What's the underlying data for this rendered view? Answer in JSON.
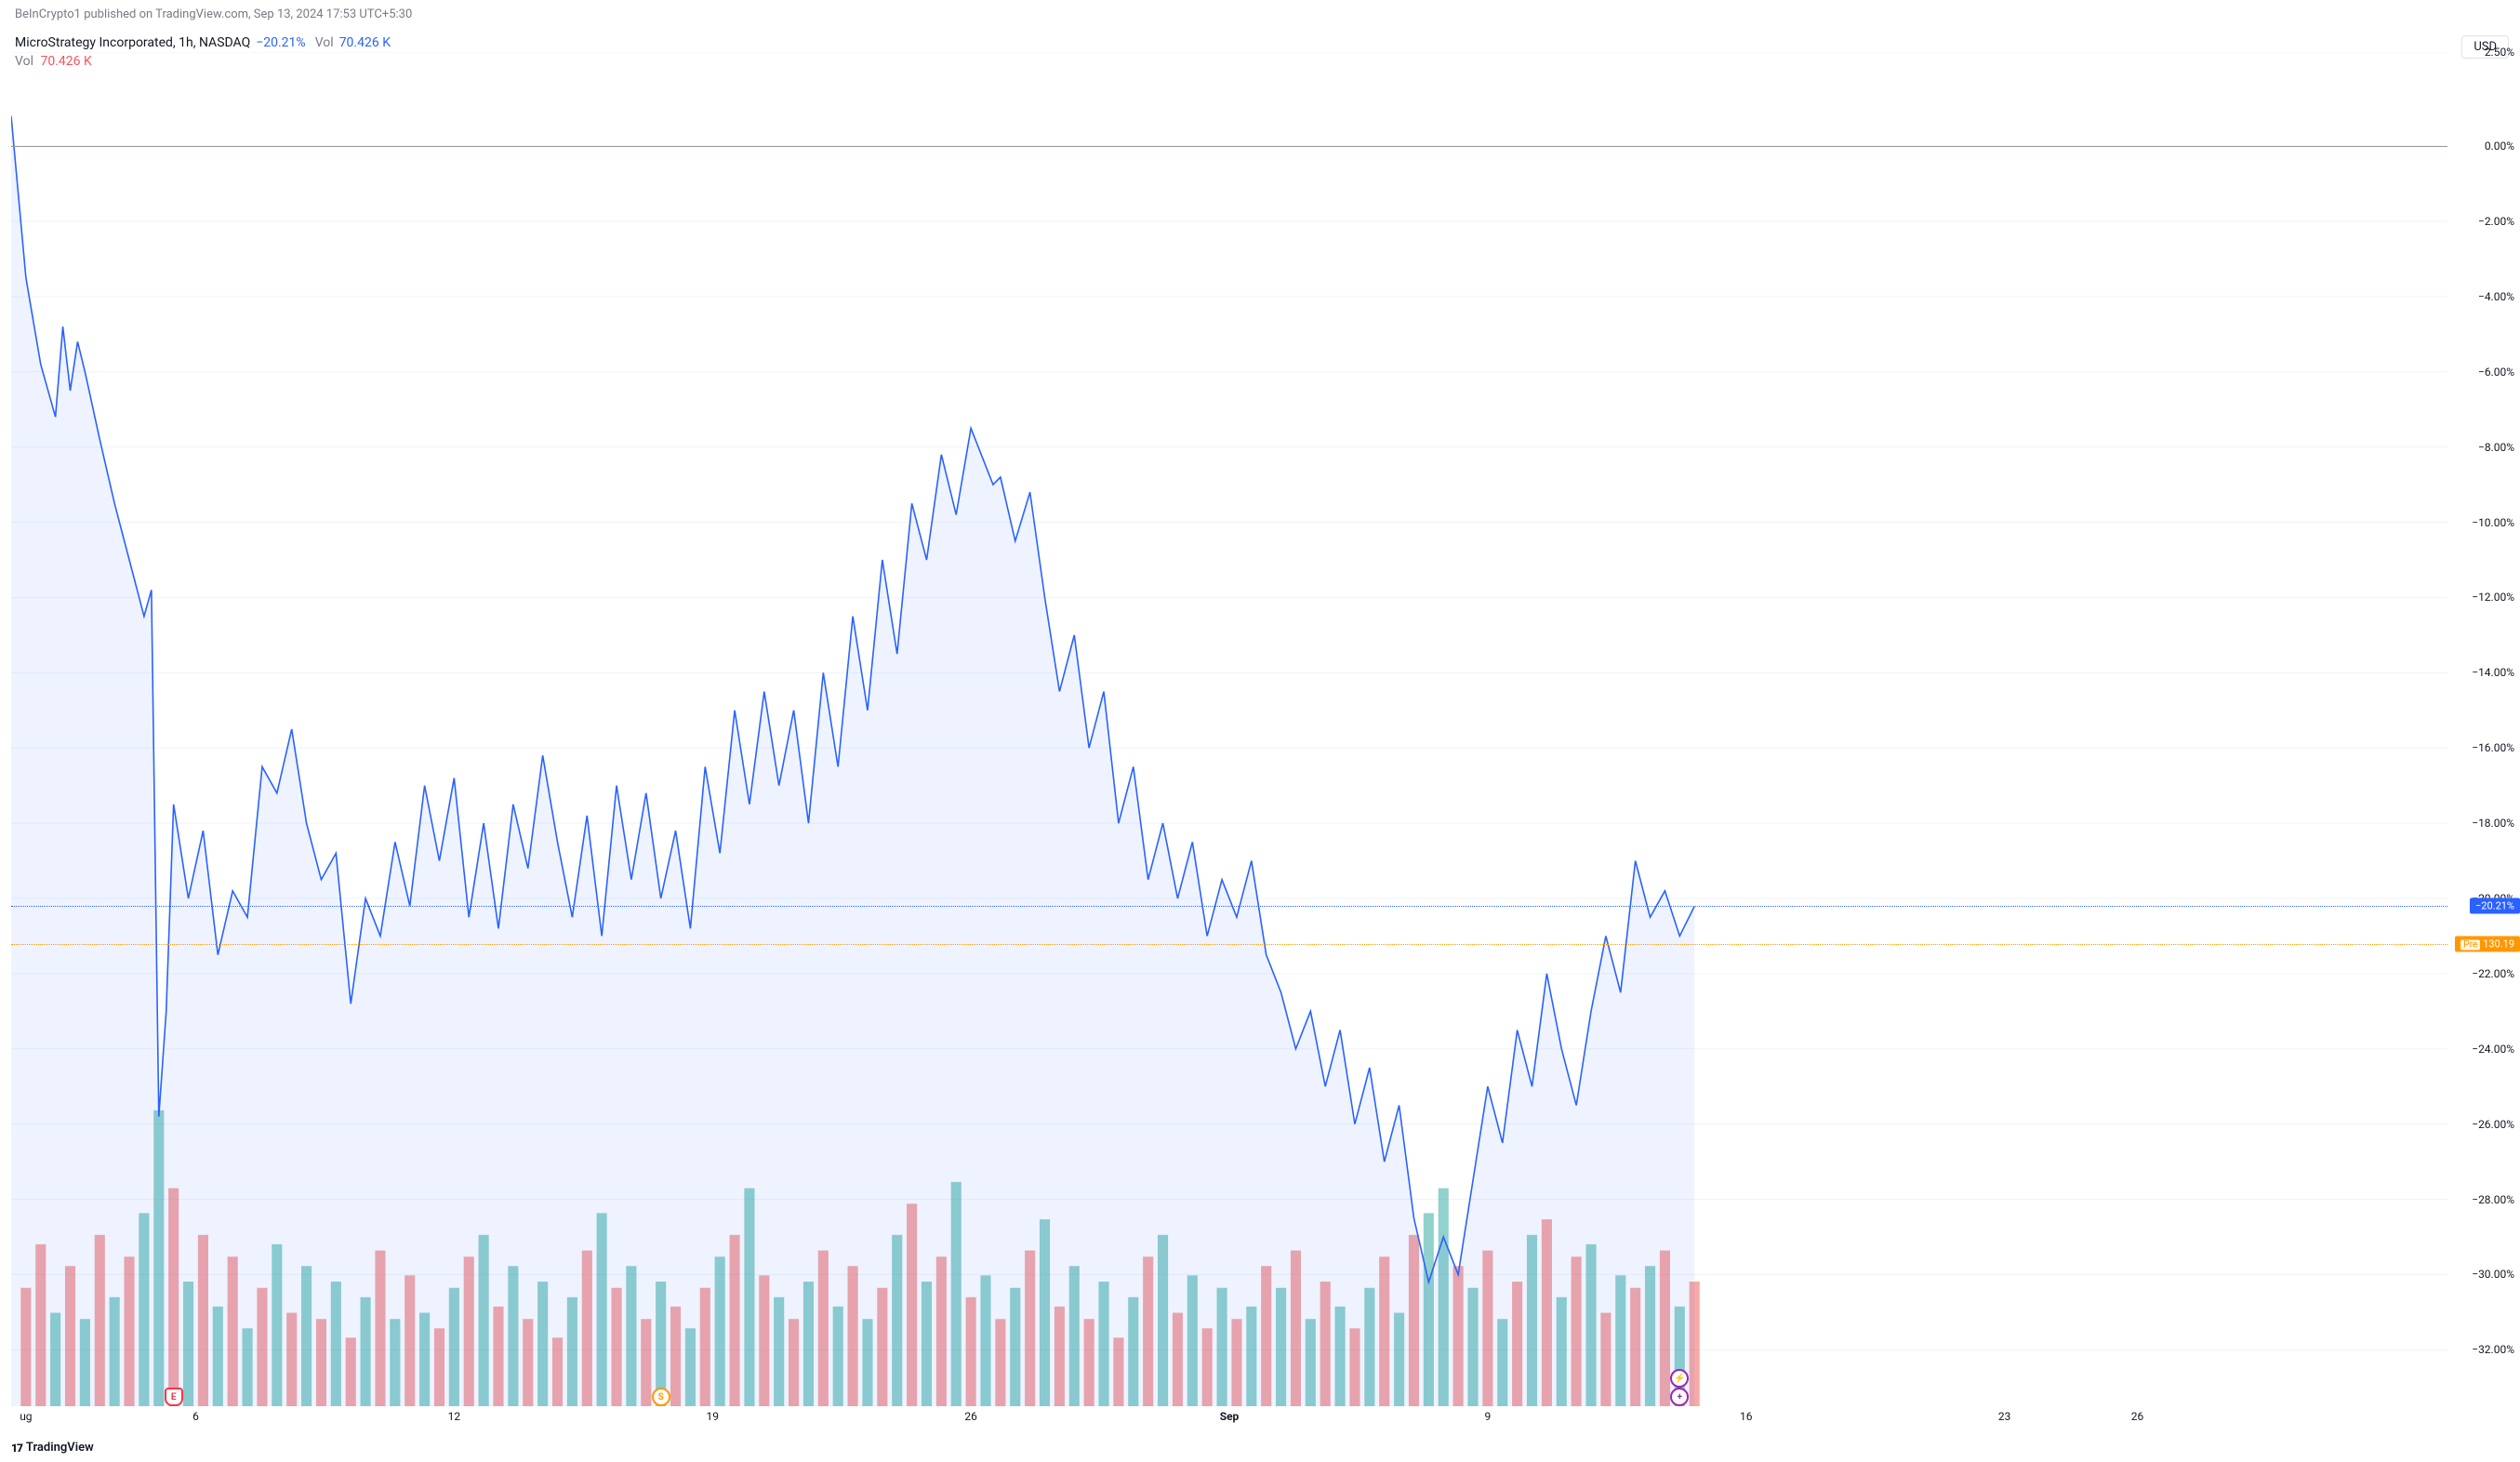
{
  "attribution": "BeInCrypto1 published on TradingView.com, Sep 13, 2024 17:53 UTC+5:30",
  "header": {
    "symbol": "MicroStrategy Incorporated, 1h, NASDAQ",
    "pct_change": "−20.21%",
    "vol_label": "Vol",
    "vol_value": "70.426 K"
  },
  "vol_indicator": {
    "label": "Vol",
    "value": "70.426 K"
  },
  "currency_label": "USD",
  "footer_brand": "TradingView",
  "chart": {
    "type": "line-area-with-volume",
    "y_domain": [
      -33.5,
      2.5
    ],
    "x_domain": [
      0,
      330
    ],
    "line_color": "#2962ff",
    "area_fill": "rgba(41,98,255,0.08)",
    "grid_color": "#f0f3fa",
    "background_color": "#ffffff",
    "zero_line_color": "#9598a1",
    "y_ticks": [
      {
        "v": 2.5,
        "label": "2.50%"
      },
      {
        "v": 0,
        "label": "0.00%"
      },
      {
        "v": -2,
        "label": "−2.00%"
      },
      {
        "v": -4,
        "label": "−4.00%"
      },
      {
        "v": -6,
        "label": "−6.00%"
      },
      {
        "v": -8,
        "label": "−8.00%"
      },
      {
        "v": -10,
        "label": "−10.00%"
      },
      {
        "v": -12,
        "label": "−12.00%"
      },
      {
        "v": -14,
        "label": "−14.00%"
      },
      {
        "v": -16,
        "label": "−16.00%"
      },
      {
        "v": -18,
        "label": "−18.00%"
      },
      {
        "v": -20,
        "label": "−20.00%"
      },
      {
        "v": -22,
        "label": "−22.00%"
      },
      {
        "v": -24,
        "label": "−24.00%"
      },
      {
        "v": -26,
        "label": "−26.00%"
      },
      {
        "v": -28,
        "label": "−28.00%"
      },
      {
        "v": -30,
        "label": "−30.00%"
      },
      {
        "v": -32,
        "label": "−32.00%"
      }
    ],
    "x_ticks": [
      {
        "x": 2,
        "label": "ug",
        "bold": false
      },
      {
        "x": 25,
        "label": "6",
        "bold": false
      },
      {
        "x": 60,
        "label": "12",
        "bold": false
      },
      {
        "x": 95,
        "label": "19",
        "bold": false
      },
      {
        "x": 130,
        "label": "26",
        "bold": false
      },
      {
        "x": 165,
        "label": "Sep",
        "bold": true
      },
      {
        "x": 200,
        "label": "9",
        "bold": false
      },
      {
        "x": 235,
        "label": "16",
        "bold": false
      },
      {
        "x": 270,
        "label": "23",
        "bold": false
      },
      {
        "x": 288,
        "label": "26",
        "bold": false
      }
    ],
    "price_tags": [
      {
        "y": -20.21,
        "label": "−20.21%",
        "kind": "blue"
      },
      {
        "y": -21.2,
        "label": "130.19",
        "prefix": "Pre",
        "kind": "orange"
      }
    ],
    "reference_lines": [
      {
        "y": 0,
        "style": "solid-gray"
      },
      {
        "y": -20.21,
        "style": "dotted-blue"
      },
      {
        "y": -21.2,
        "style": "dotted-orange"
      }
    ],
    "series": [
      [
        0,
        0.8
      ],
      [
        2,
        -3.5
      ],
      [
        4,
        -5.8
      ],
      [
        6,
        -7.2
      ],
      [
        7,
        -4.8
      ],
      [
        8,
        -6.5
      ],
      [
        9,
        -5.2
      ],
      [
        10,
        -6.0
      ],
      [
        12,
        -7.8
      ],
      [
        14,
        -9.5
      ],
      [
        16,
        -11.0
      ],
      [
        18,
        -12.5
      ],
      [
        19,
        -11.8
      ],
      [
        20,
        -25.8
      ],
      [
        21,
        -23.0
      ],
      [
        22,
        -17.5
      ],
      [
        24,
        -20.0
      ],
      [
        26,
        -18.2
      ],
      [
        28,
        -21.5
      ],
      [
        30,
        -19.8
      ],
      [
        32,
        -20.5
      ],
      [
        34,
        -16.5
      ],
      [
        36,
        -17.2
      ],
      [
        38,
        -15.5
      ],
      [
        40,
        -18.0
      ],
      [
        42,
        -19.5
      ],
      [
        44,
        -18.8
      ],
      [
        46,
        -22.8
      ],
      [
        48,
        -20.0
      ],
      [
        50,
        -21.0
      ],
      [
        52,
        -18.5
      ],
      [
        54,
        -20.2
      ],
      [
        56,
        -17.0
      ],
      [
        58,
        -19.0
      ],
      [
        60,
        -16.8
      ],
      [
        62,
        -20.5
      ],
      [
        64,
        -18.0
      ],
      [
        66,
        -20.8
      ],
      [
        68,
        -17.5
      ],
      [
        70,
        -19.2
      ],
      [
        72,
        -16.2
      ],
      [
        74,
        -18.5
      ],
      [
        76,
        -20.5
      ],
      [
        78,
        -17.8
      ],
      [
        80,
        -21.0
      ],
      [
        82,
        -17.0
      ],
      [
        84,
        -19.5
      ],
      [
        86,
        -17.2
      ],
      [
        88,
        -20.0
      ],
      [
        90,
        -18.2
      ],
      [
        92,
        -20.8
      ],
      [
        94,
        -16.5
      ],
      [
        96,
        -18.8
      ],
      [
        98,
        -15.0
      ],
      [
        100,
        -17.5
      ],
      [
        102,
        -14.5
      ],
      [
        104,
        -17.0
      ],
      [
        106,
        -15.0
      ],
      [
        108,
        -18.0
      ],
      [
        110,
        -14.0
      ],
      [
        112,
        -16.5
      ],
      [
        114,
        -12.5
      ],
      [
        116,
        -15.0
      ],
      [
        118,
        -11.0
      ],
      [
        120,
        -13.5
      ],
      [
        122,
        -9.5
      ],
      [
        124,
        -11.0
      ],
      [
        126,
        -8.2
      ],
      [
        128,
        -9.8
      ],
      [
        130,
        -7.5
      ],
      [
        132,
        -8.5
      ],
      [
        133,
        -9.0
      ],
      [
        134,
        -8.8
      ],
      [
        136,
        -10.5
      ],
      [
        138,
        -9.2
      ],
      [
        140,
        -12.0
      ],
      [
        142,
        -14.5
      ],
      [
        144,
        -13.0
      ],
      [
        146,
        -16.0
      ],
      [
        148,
        -14.5
      ],
      [
        150,
        -18.0
      ],
      [
        152,
        -16.5
      ],
      [
        154,
        -19.5
      ],
      [
        156,
        -18.0
      ],
      [
        158,
        -20.0
      ],
      [
        160,
        -18.5
      ],
      [
        162,
        -21.0
      ],
      [
        164,
        -19.5
      ],
      [
        166,
        -20.5
      ],
      [
        168,
        -19.0
      ],
      [
        170,
        -21.5
      ],
      [
        172,
        -22.5
      ],
      [
        174,
        -24.0
      ],
      [
        176,
        -23.0
      ],
      [
        178,
        -25.0
      ],
      [
        180,
        -23.5
      ],
      [
        182,
        -26.0
      ],
      [
        184,
        -24.5
      ],
      [
        186,
        -27.0
      ],
      [
        188,
        -25.5
      ],
      [
        190,
        -28.5
      ],
      [
        192,
        -30.2
      ],
      [
        194,
        -29.0
      ],
      [
        196,
        -30.0
      ],
      [
        198,
        -27.5
      ],
      [
        200,
        -25.0
      ],
      [
        202,
        -26.5
      ],
      [
        204,
        -23.5
      ],
      [
        206,
        -25.0
      ],
      [
        208,
        -22.0
      ],
      [
        210,
        -24.0
      ],
      [
        212,
        -25.5
      ],
      [
        214,
        -23.0
      ],
      [
        216,
        -21.0
      ],
      [
        218,
        -22.5
      ],
      [
        220,
        -19.0
      ],
      [
        222,
        -20.5
      ],
      [
        224,
        -19.8
      ],
      [
        226,
        -21.0
      ],
      [
        228,
        -20.21
      ]
    ],
    "volume": {
      "max": 100,
      "base_pct": 0.23,
      "bar_width_ratio": 0.7,
      "green": "rgba(38,166,154,0.5)",
      "red": "rgba(239,83,80,0.5)",
      "bars": [
        [
          2,
          38,
          "r"
        ],
        [
          4,
          52,
          "r"
        ],
        [
          6,
          30,
          "g"
        ],
        [
          8,
          45,
          "r"
        ],
        [
          10,
          28,
          "g"
        ],
        [
          12,
          55,
          "r"
        ],
        [
          14,
          35,
          "g"
        ],
        [
          16,
          48,
          "r"
        ],
        [
          18,
          62,
          "g"
        ],
        [
          20,
          95,
          "g"
        ],
        [
          22,
          70,
          "r"
        ],
        [
          24,
          40,
          "g"
        ],
        [
          26,
          55,
          "r"
        ],
        [
          28,
          32,
          "g"
        ],
        [
          30,
          48,
          "r"
        ],
        [
          32,
          25,
          "g"
        ],
        [
          34,
          38,
          "r"
        ],
        [
          36,
          52,
          "g"
        ],
        [
          38,
          30,
          "r"
        ],
        [
          40,
          45,
          "g"
        ],
        [
          42,
          28,
          "r"
        ],
        [
          44,
          40,
          "g"
        ],
        [
          46,
          22,
          "r"
        ],
        [
          48,
          35,
          "g"
        ],
        [
          50,
          50,
          "r"
        ],
        [
          52,
          28,
          "g"
        ],
        [
          54,
          42,
          "r"
        ],
        [
          56,
          30,
          "g"
        ],
        [
          58,
          25,
          "r"
        ],
        [
          60,
          38,
          "g"
        ],
        [
          62,
          48,
          "r"
        ],
        [
          64,
          55,
          "g"
        ],
        [
          66,
          32,
          "r"
        ],
        [
          68,
          45,
          "g"
        ],
        [
          70,
          28,
          "r"
        ],
        [
          72,
          40,
          "g"
        ],
        [
          74,
          22,
          "r"
        ],
        [
          76,
          35,
          "g"
        ],
        [
          78,
          50,
          "r"
        ],
        [
          80,
          62,
          "g"
        ],
        [
          82,
          38,
          "r"
        ],
        [
          84,
          45,
          "g"
        ],
        [
          86,
          28,
          "r"
        ],
        [
          88,
          40,
          "g"
        ],
        [
          90,
          32,
          "r"
        ],
        [
          92,
          25,
          "g"
        ],
        [
          94,
          38,
          "r"
        ],
        [
          96,
          48,
          "g"
        ],
        [
          98,
          55,
          "r"
        ],
        [
          100,
          70,
          "g"
        ],
        [
          102,
          42,
          "r"
        ],
        [
          104,
          35,
          "g"
        ],
        [
          106,
          28,
          "r"
        ],
        [
          108,
          40,
          "g"
        ],
        [
          110,
          50,
          "r"
        ],
        [
          112,
          32,
          "g"
        ],
        [
          114,
          45,
          "r"
        ],
        [
          116,
          28,
          "g"
        ],
        [
          118,
          38,
          "r"
        ],
        [
          120,
          55,
          "g"
        ],
        [
          122,
          65,
          "r"
        ],
        [
          124,
          40,
          "g"
        ],
        [
          126,
          48,
          "r"
        ],
        [
          128,
          72,
          "g"
        ],
        [
          130,
          35,
          "r"
        ],
        [
          132,
          42,
          "g"
        ],
        [
          134,
          28,
          "r"
        ],
        [
          136,
          38,
          "g"
        ],
        [
          138,
          50,
          "r"
        ],
        [
          140,
          60,
          "g"
        ],
        [
          142,
          32,
          "r"
        ],
        [
          144,
          45,
          "g"
        ],
        [
          146,
          28,
          "r"
        ],
        [
          148,
          40,
          "g"
        ],
        [
          150,
          22,
          "r"
        ],
        [
          152,
          35,
          "g"
        ],
        [
          154,
          48,
          "r"
        ],
        [
          156,
          55,
          "g"
        ],
        [
          158,
          30,
          "r"
        ],
        [
          160,
          42,
          "g"
        ],
        [
          162,
          25,
          "r"
        ],
        [
          164,
          38,
          "g"
        ],
        [
          166,
          28,
          "r"
        ],
        [
          168,
          32,
          "g"
        ],
        [
          170,
          45,
          "r"
        ],
        [
          172,
          38,
          "g"
        ],
        [
          174,
          50,
          "r"
        ],
        [
          176,
          28,
          "g"
        ],
        [
          178,
          40,
          "r"
        ],
        [
          180,
          32,
          "g"
        ],
        [
          182,
          25,
          "r"
        ],
        [
          184,
          38,
          "g"
        ],
        [
          186,
          48,
          "r"
        ],
        [
          188,
          30,
          "g"
        ],
        [
          190,
          55,
          "r"
        ],
        [
          192,
          62,
          "g"
        ],
        [
          194,
          70,
          "g"
        ],
        [
          196,
          45,
          "r"
        ],
        [
          198,
          38,
          "g"
        ],
        [
          200,
          50,
          "r"
        ],
        [
          202,
          28,
          "g"
        ],
        [
          204,
          40,
          "r"
        ],
        [
          206,
          55,
          "g"
        ],
        [
          208,
          60,
          "r"
        ],
        [
          210,
          35,
          "g"
        ],
        [
          212,
          48,
          "r"
        ],
        [
          214,
          52,
          "g"
        ],
        [
          216,
          30,
          "r"
        ],
        [
          218,
          42,
          "g"
        ],
        [
          220,
          38,
          "r"
        ],
        [
          222,
          45,
          "g"
        ],
        [
          224,
          50,
          "r"
        ],
        [
          226,
          32,
          "g"
        ],
        [
          228,
          40,
          "r"
        ]
      ]
    },
    "events": [
      {
        "x": 22,
        "type": "e-red",
        "label": "E"
      },
      {
        "x": 88,
        "type": "e-orange",
        "label": "S"
      },
      {
        "x": 226,
        "y_offset": -20,
        "type": "e-purple",
        "label": "⚡"
      },
      {
        "x": 226,
        "y_offset": 0,
        "type": "e-purple",
        "label": "+"
      }
    ]
  }
}
